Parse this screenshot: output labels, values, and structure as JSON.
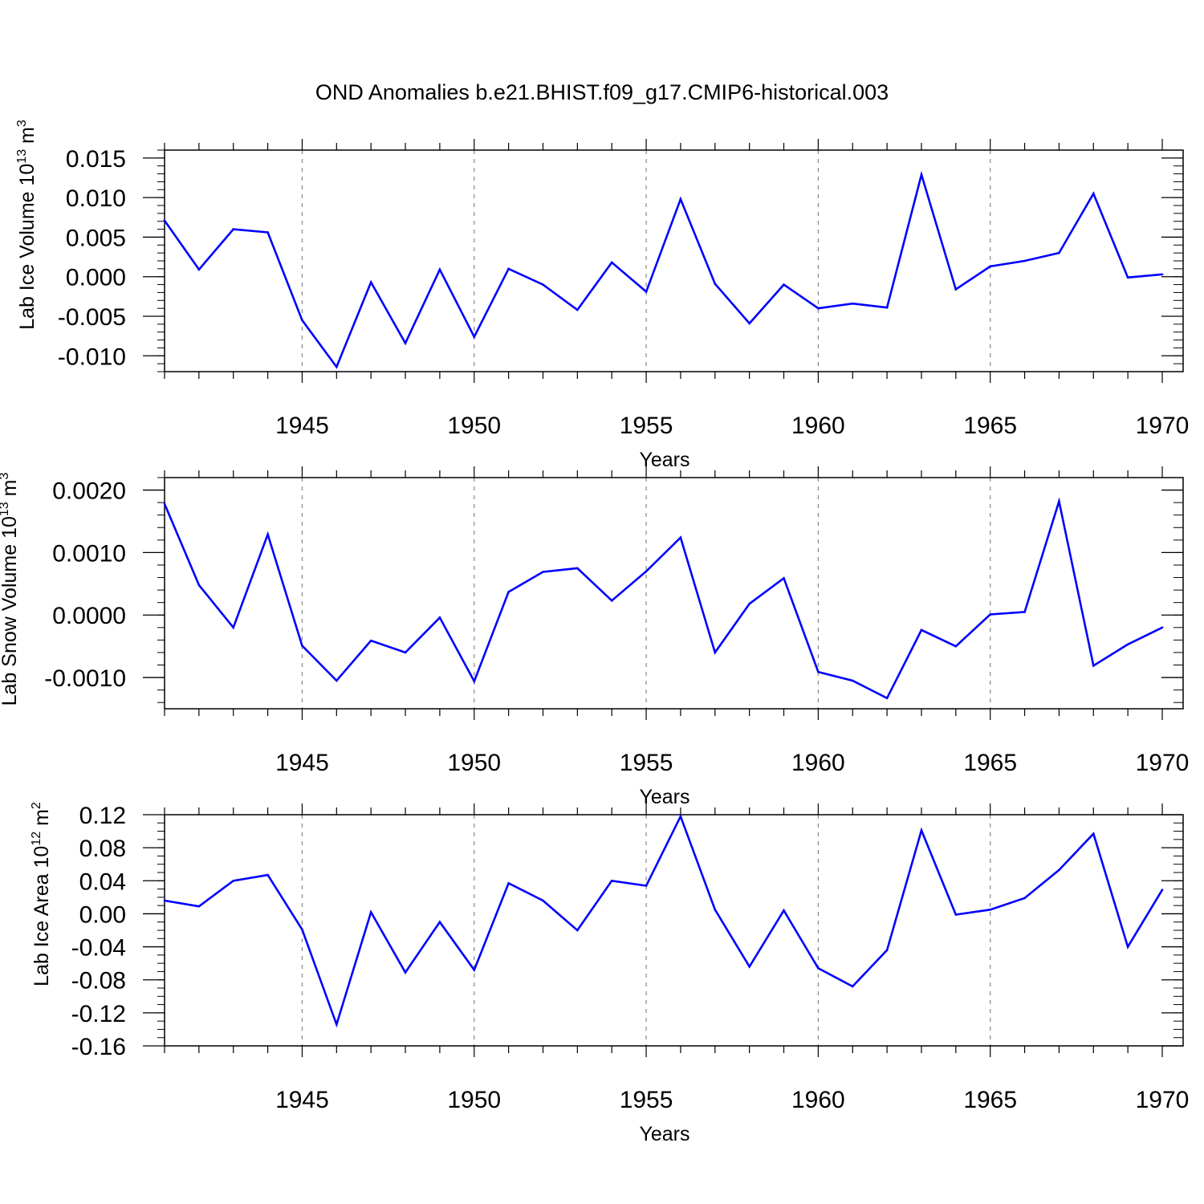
{
  "figure": {
    "title": "OND Anomalies b.e21.BHIST.f09_g17.CMIP6-historical.003"
  },
  "chart_data": [
    {
      "type": "line",
      "title": "",
      "ylabel_main": "Lab Ice Volume 10",
      "ylabel_sup": "13",
      "ylabel_unit": " m",
      "ylabel_unit_sup": "3",
      "xlabel": "Years",
      "xlim": [
        1941,
        1970
      ],
      "ylim": [
        -0.012,
        0.016
      ],
      "x_ticks": [
        1945,
        1950,
        1955,
        1960,
        1965,
        1970
      ],
      "y_ticks": [
        -0.01,
        -0.005,
        0.0,
        0.005,
        0.01,
        0.015
      ],
      "y_tick_labels": [
        "-0.010",
        "-0.005",
        "0.000",
        "0.005",
        "0.010",
        "0.015"
      ],
      "y_minor_step": 0.001,
      "line_color": "#0000ff",
      "x": [
        1941,
        1942,
        1943,
        1944,
        1945,
        1946,
        1947,
        1948,
        1949,
        1950,
        1951,
        1952,
        1953,
        1954,
        1955,
        1956,
        1957,
        1958,
        1959,
        1960,
        1961,
        1962,
        1963,
        1964,
        1965,
        1966,
        1967,
        1968,
        1969,
        1970
      ],
      "values": [
        0.0071,
        0.0009,
        0.006,
        0.0056,
        -0.0055,
        -0.0114,
        -0.0007,
        -0.0084,
        0.0009,
        -0.0076,
        0.001,
        -0.001,
        -0.0042,
        0.0018,
        -0.0019,
        0.0098,
        -0.0009,
        -0.0059,
        -0.001,
        -0.004,
        -0.0034,
        -0.0039,
        0.0129,
        -0.0016,
        0.0013,
        0.002,
        0.003,
        0.0105,
        -0.0001,
        0.0003
      ]
    },
    {
      "type": "line",
      "title": "",
      "ylabel_main": "Lab Snow Volume 10",
      "ylabel_sup": "13",
      "ylabel_unit": " m",
      "ylabel_unit_sup": "3",
      "xlabel": "Years",
      "xlim": [
        1941,
        1970
      ],
      "ylim": [
        -0.0015,
        0.0022
      ],
      "x_ticks": [
        1945,
        1950,
        1955,
        1960,
        1965,
        1970
      ],
      "y_ticks": [
        -0.001,
        0.0,
        0.001,
        0.002
      ],
      "y_tick_labels": [
        "-0.0010",
        "0.0000",
        "0.0010",
        "0.0020"
      ],
      "y_minor_step": 0.0002,
      "line_color": "#0000ff",
      "x": [
        1941,
        1942,
        1943,
        1944,
        1945,
        1946,
        1947,
        1948,
        1949,
        1950,
        1951,
        1952,
        1953,
        1954,
        1955,
        1956,
        1957,
        1958,
        1959,
        1960,
        1961,
        1962,
        1963,
        1964,
        1965,
        1966,
        1967,
        1968,
        1969,
        1970
      ],
      "values": [
        0.00178,
        0.00048,
        -0.0002,
        0.00129,
        -0.00049,
        -0.00105,
        -0.00041,
        -0.0006,
        -4e-05,
        -0.00106,
        0.00037,
        0.00069,
        0.00075,
        0.00023,
        0.0007,
        0.00124,
        -0.0006,
        0.00018,
        0.00059,
        -0.00091,
        -0.00105,
        -0.00133,
        -0.00024,
        -0.0005,
        1e-05,
        5e-05,
        0.00182,
        -0.00081,
        -0.00047,
        -0.0002
      ]
    },
    {
      "type": "line",
      "title": "",
      "ylabel_main": "Lab Ice Area 10",
      "ylabel_sup": "12",
      "ylabel_unit": " m",
      "ylabel_unit_sup": "2",
      "xlabel": "Years",
      "xlim": [
        1941,
        1970
      ],
      "ylim": [
        -0.16,
        0.12
      ],
      "x_ticks": [
        1945,
        1950,
        1955,
        1960,
        1965,
        1970
      ],
      "y_ticks": [
        -0.16,
        -0.12,
        -0.08,
        -0.04,
        0.0,
        0.04,
        0.08,
        0.12
      ],
      "y_tick_labels": [
        "-0.16",
        "-0.12",
        "-0.08",
        "-0.04",
        "0.00",
        "0.04",
        "0.08",
        "0.12"
      ],
      "y_minor_step": 0.01,
      "line_color": "#0000ff",
      "x": [
        1941,
        1942,
        1943,
        1944,
        1945,
        1946,
        1947,
        1948,
        1949,
        1950,
        1951,
        1952,
        1953,
        1954,
        1955,
        1956,
        1957,
        1958,
        1959,
        1960,
        1961,
        1962,
        1963,
        1964,
        1965,
        1966,
        1967,
        1968,
        1969,
        1970
      ],
      "values": [
        0.016,
        0.009,
        0.04,
        0.047,
        -0.019,
        -0.134,
        0.002,
        -0.071,
        -0.01,
        -0.068,
        0.037,
        0.016,
        -0.02,
        0.04,
        0.034,
        0.118,
        0.005,
        -0.064,
        0.004,
        -0.066,
        -0.088,
        -0.044,
        0.101,
        -0.001,
        0.005,
        0.019,
        0.053,
        0.097,
        -0.04,
        0.029
      ]
    }
  ]
}
